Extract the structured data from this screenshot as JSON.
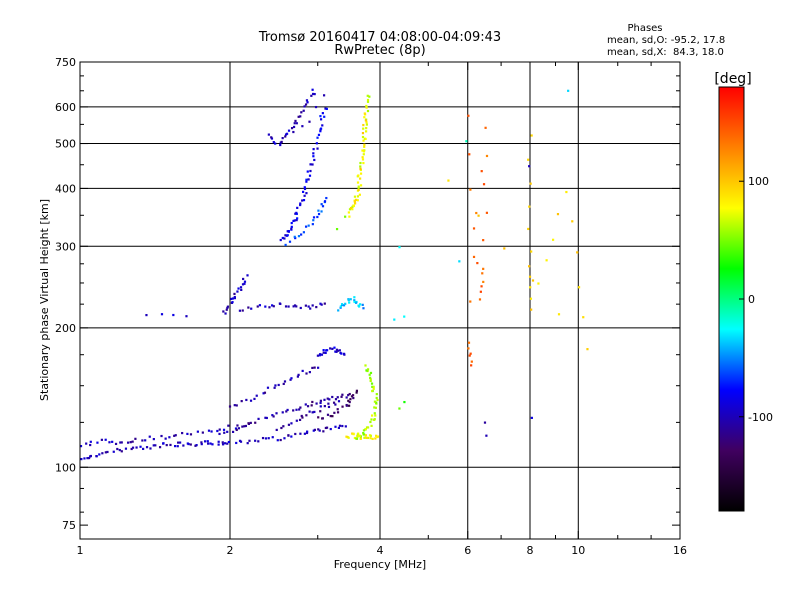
{
  "chart_data": {
    "type": "scatter",
    "title": "Tromsø 20160417 04:08:00-04:09:43",
    "subtitle": "RwPretec (8p)",
    "xlabel": "Frequency [MHz]",
    "ylabel": "Stationary phase Virtual Height [km]",
    "x_scale": "log",
    "y_scale": "log",
    "xlim": [
      1,
      16
    ],
    "ylim": [
      70,
      750
    ],
    "x_ticks": [
      1,
      2,
      4,
      6,
      8,
      10,
      16
    ],
    "x_tick_labels": [
      "1",
      "2",
      "4",
      "6",
      "8",
      "10",
      "16"
    ],
    "x_grid": [
      2,
      4,
      6,
      8,
      10
    ],
    "y_ticks": [
      75,
      100,
      200,
      300,
      400,
      500,
      600,
      750
    ],
    "y_tick_labels": [
      "75",
      "100",
      "200",
      "300",
      "400",
      "500",
      "600",
      "750"
    ],
    "y_grid": [
      100,
      200,
      300,
      400,
      500,
      600
    ],
    "grid": true,
    "phases": {
      "title": "Phases",
      "line_o": "mean, sd,O: -95.2, 17.8",
      "line_x": "mean, sd,X:  84.3, 18.0"
    },
    "colorbar": {
      "label": "[deg]",
      "range": [
        -180,
        180
      ],
      "ticks": [
        100,
        0,
        -100
      ],
      "tick_labels": [
        "100",
        "0",
        "-100"
      ],
      "colors": [
        "#ff0000",
        "#ff8000",
        "#ffff00",
        "#00ff00",
        "#00ffff",
        "#0000ff",
        "#400060",
        "#000000"
      ]
    },
    "traces": [
      {
        "phase": -100,
        "points": [
          [
            1.0,
            103
          ],
          [
            1.05,
            106
          ],
          [
            1.1,
            107
          ],
          [
            1.2,
            109
          ],
          [
            1.3,
            110
          ],
          [
            1.4,
            111
          ],
          [
            1.5,
            112
          ],
          [
            1.6,
            112
          ],
          [
            1.7,
            112
          ],
          [
            1.8,
            113
          ],
          [
            1.9,
            113
          ],
          [
            2.0,
            113
          ],
          [
            2.2,
            114
          ],
          [
            2.4,
            115
          ],
          [
            2.6,
            116
          ],
          [
            2.8,
            118
          ],
          [
            3.0,
            120
          ],
          [
            3.2,
            122
          ],
          [
            3.4,
            123
          ]
        ]
      },
      {
        "phase": -100,
        "points": [
          [
            1.0,
            112
          ],
          [
            1.1,
            114
          ],
          [
            1.2,
            113
          ],
          [
            1.3,
            115
          ],
          [
            1.45,
            116
          ],
          [
            1.6,
            118
          ],
          [
            1.8,
            120
          ],
          [
            2.0,
            122
          ],
          [
            2.2,
            123
          ]
        ]
      },
      {
        "phase": -110,
        "points": [
          [
            1.9,
            118
          ],
          [
            2.1,
            122
          ],
          [
            2.3,
            126
          ],
          [
            2.5,
            130
          ],
          [
            2.7,
            134
          ],
          [
            2.9,
            137
          ],
          [
            3.1,
            140
          ],
          [
            3.3,
            142
          ],
          [
            3.5,
            143
          ]
        ]
      },
      {
        "phase": -105,
        "points": [
          [
            2.0,
            135
          ],
          [
            2.2,
            140
          ],
          [
            2.4,
            148
          ],
          [
            2.6,
            154
          ],
          [
            2.8,
            160
          ],
          [
            3.0,
            165
          ]
        ]
      },
      {
        "phase": -110,
        "points": [
          [
            2.5,
            120
          ],
          [
            2.7,
            126
          ],
          [
            2.9,
            131
          ],
          [
            3.1,
            135
          ],
          [
            3.3,
            138
          ]
        ]
      },
      {
        "phase": -90,
        "points": [
          [
            3.0,
            175
          ],
          [
            3.1,
            178
          ],
          [
            3.2,
            180
          ],
          [
            3.3,
            178
          ],
          [
            3.4,
            176
          ]
        ]
      },
      {
        "phase": -130,
        "points": [
          [
            3.0,
            128
          ],
          [
            3.2,
            130
          ],
          [
            3.4,
            135
          ],
          [
            3.5,
            140
          ],
          [
            3.6,
            145
          ]
        ]
      },
      {
        "phase": 60,
        "points": [
          [
            3.55,
            115
          ],
          [
            3.65,
            117
          ],
          [
            3.75,
            120
          ],
          [
            3.85,
            125
          ],
          [
            3.9,
            130
          ],
          [
            3.95,
            138
          ],
          [
            3.9,
            145
          ],
          [
            3.85,
            152
          ],
          [
            3.8,
            160
          ],
          [
            3.75,
            165
          ]
        ]
      },
      {
        "phase": 80,
        "points": [
          [
            3.45,
            116
          ],
          [
            3.55,
            118
          ],
          [
            3.65,
            116
          ],
          [
            3.75,
            117
          ],
          [
            3.85,
            116
          ],
          [
            3.95,
            117
          ]
        ]
      },
      {
        "phase": 40,
        "points": [
          [
            4.4,
            135
          ],
          [
            4.5,
            138
          ]
        ]
      },
      {
        "phase": -95,
        "points": [
          [
            1.35,
            212
          ],
          [
            1.45,
            215
          ],
          [
            1.55,
            214
          ],
          [
            1.65,
            213
          ]
        ]
      },
      {
        "phase": -100,
        "points": [
          [
            1.95,
            215
          ],
          [
            2.0,
            225
          ],
          [
            2.05,
            235
          ],
          [
            2.1,
            245
          ],
          [
            2.15,
            258
          ]
        ]
      },
      {
        "phase": -100,
        "points": [
          [
            2.1,
            218
          ],
          [
            2.3,
            222
          ],
          [
            2.5,
            225
          ],
          [
            2.7,
            223
          ],
          [
            2.9,
            221
          ],
          [
            3.1,
            226
          ]
        ]
      },
      {
        "phase": -40,
        "points": [
          [
            3.3,
            220
          ],
          [
            3.4,
            226
          ],
          [
            3.5,
            232
          ],
          [
            3.6,
            227
          ],
          [
            3.7,
            221
          ]
        ]
      },
      {
        "phase": -30,
        "points": [
          [
            4.3,
            210
          ],
          [
            4.5,
            212
          ]
        ]
      },
      {
        "phase": -85,
        "points": [
          [
            2.55,
            310
          ],
          [
            2.6,
            320
          ],
          [
            2.65,
            330
          ],
          [
            2.7,
            345
          ],
          [
            2.75,
            360
          ],
          [
            2.8,
            385
          ],
          [
            2.85,
            410
          ],
          [
            2.9,
            440
          ],
          [
            2.95,
            475
          ],
          [
            3.0,
            520
          ],
          [
            3.05,
            560
          ],
          [
            3.1,
            600
          ]
        ]
      },
      {
        "phase": -60,
        "points": [
          [
            2.6,
            305
          ],
          [
            2.8,
            320
          ],
          [
            2.95,
            340
          ],
          [
            3.05,
            360
          ],
          [
            3.1,
            380
          ]
        ]
      },
      {
        "phase": -100,
        "points": [
          [
            2.4,
            520
          ],
          [
            2.5,
            500
          ],
          [
            2.6,
            520
          ],
          [
            2.7,
            545
          ],
          [
            2.75,
            575
          ],
          [
            2.85,
            620
          ],
          [
            2.95,
            650
          ]
        ]
      },
      {
        "phase": -100,
        "points": [
          [
            2.8,
            540
          ],
          [
            2.9,
            560
          ],
          [
            3.0,
            600
          ],
          [
            3.1,
            630
          ]
        ]
      },
      {
        "phase": 70,
        "points": [
          [
            3.45,
            350
          ],
          [
            3.55,
            370
          ],
          [
            3.6,
            400
          ],
          [
            3.65,
            440
          ],
          [
            3.7,
            480
          ],
          [
            3.72,
            520
          ],
          [
            3.74,
            560
          ],
          [
            3.76,
            600
          ],
          [
            3.78,
            640
          ]
        ]
      },
      {
        "phase": 90,
        "points": [
          [
            3.5,
            360
          ],
          [
            3.6,
            380
          ],
          [
            3.65,
            430
          ],
          [
            3.7,
            500
          ],
          [
            3.75,
            580
          ]
        ]
      },
      {
        "phase": 50,
        "points": [
          [
            3.3,
            330
          ],
          [
            3.4,
            345
          ]
        ]
      },
      {
        "phase": 140,
        "points": [
          [
            6.0,
            570
          ],
          [
            6.3,
            230
          ],
          [
            6.5,
            270
          ],
          [
            6.5,
            540
          ],
          [
            6.0,
            185
          ],
          [
            6.1,
            165
          ]
        ]
      },
      {
        "phase": -100,
        "points": [
          [
            6.5,
            125
          ],
          [
            6.5,
            118
          ],
          [
            8.0,
            450
          ],
          [
            8.0,
            128
          ]
        ]
      },
      {
        "phase": 90,
        "points": [
          [
            8.0,
            520
          ],
          [
            8.0,
            290
          ],
          [
            8.0,
            220
          ],
          [
            9.5,
            395
          ],
          [
            10.5,
            180
          ],
          [
            5.5,
            415
          ]
        ]
      },
      {
        "phase": -20,
        "points": [
          [
            5.8,
            280
          ],
          [
            6.0,
            510
          ],
          [
            9.5,
            650
          ],
          [
            4.4,
            300
          ]
        ]
      }
    ]
  }
}
